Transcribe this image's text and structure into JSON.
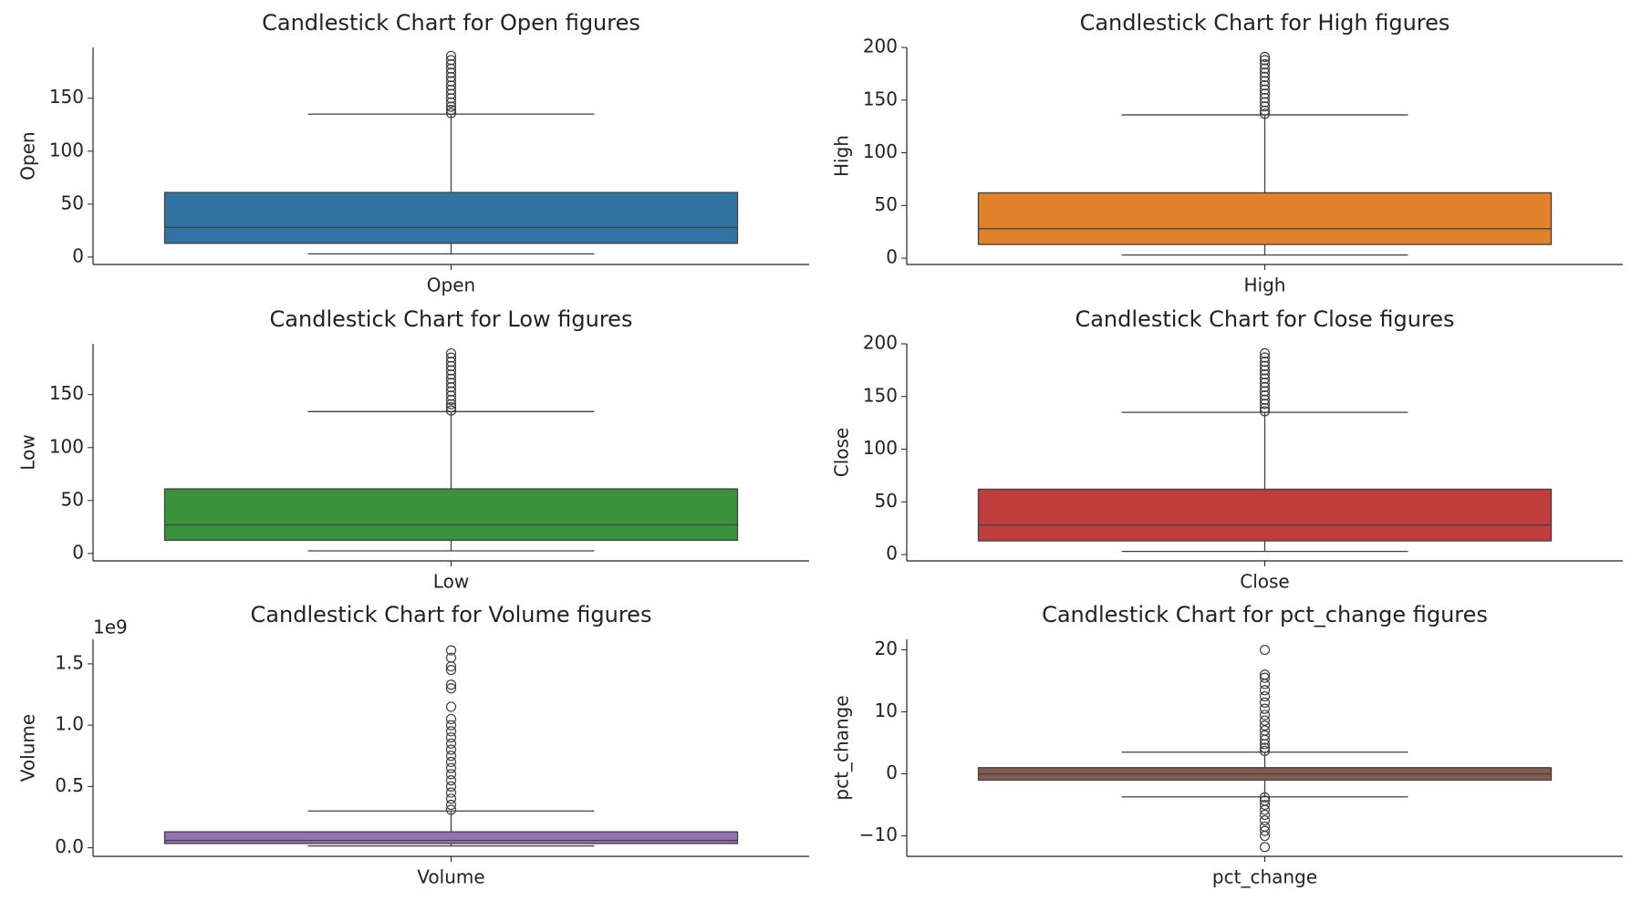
{
  "chart_data": [
    {
      "type": "box",
      "title": "Candlestick Chart for Open figures",
      "categories": [
        "Open"
      ],
      "ylabel": "Open",
      "color": "#3274a1",
      "ylim": [
        -7,
        198
      ],
      "yticks": [
        0,
        50,
        100,
        150
      ],
      "stats": {
        "whislo": 3,
        "q1": 13,
        "med": 28,
        "q3": 61,
        "whishi": 135
      },
      "outliers": [
        136,
        139,
        142,
        146,
        150,
        154,
        158,
        162,
        166,
        170,
        174,
        178,
        182,
        186,
        190
      ]
    },
    {
      "type": "box",
      "title": "Candlestick Chart for High figures",
      "categories": [
        "High"
      ],
      "ylabel": "High",
      "color": "#e1812c",
      "ylim": [
        -6,
        200
      ],
      "yticks": [
        0,
        50,
        100,
        150,
        200
      ],
      "stats": {
        "whislo": 3,
        "q1": 13,
        "med": 28,
        "q3": 62,
        "whishi": 136
      },
      "outliers": [
        137,
        140,
        144,
        148,
        152,
        156,
        160,
        164,
        168,
        172,
        176,
        180,
        184,
        188,
        191
      ]
    },
    {
      "type": "box",
      "title": "Candlestick Chart for Low figures",
      "categories": [
        "Low"
      ],
      "ylabel": "Low",
      "color": "#3a923a",
      "ylim": [
        -7,
        198
      ],
      "yticks": [
        0,
        50,
        100,
        150
      ],
      "stats": {
        "whislo": 2.5,
        "q1": 12.5,
        "med": 27,
        "q3": 61,
        "whishi": 134
      },
      "outliers": [
        135,
        138,
        141,
        145,
        149,
        153,
        157,
        161,
        165,
        169,
        173,
        177,
        181,
        185,
        189
      ]
    },
    {
      "type": "box",
      "title": "Candlestick Chart for Close figures",
      "categories": [
        "Close"
      ],
      "ylabel": "Close",
      "color": "#c03d3e",
      "ylim": [
        -6,
        200
      ],
      "yticks": [
        0,
        50,
        100,
        150,
        200
      ],
      "stats": {
        "whislo": 3,
        "q1": 13,
        "med": 28,
        "q3": 62,
        "whishi": 135
      },
      "outliers": [
        136,
        139,
        143,
        147,
        151,
        155,
        159,
        163,
        167,
        171,
        175,
        179,
        183,
        187,
        191
      ]
    },
    {
      "type": "box",
      "title": "Candlestick Chart for Volume figures",
      "categories": [
        "Volume"
      ],
      "ylabel": "Volume",
      "color": "#9372b2",
      "ylim": [
        -70000000,
        1700000000
      ],
      "axis_offset_label": "1e9",
      "yticks": [
        {
          "value": 0,
          "label": "0.0"
        },
        {
          "value": 500000000,
          "label": "0.5"
        },
        {
          "value": 1000000000,
          "label": "1.0"
        },
        {
          "value": 1500000000,
          "label": "1.5"
        }
      ],
      "stats": {
        "whislo": 15000000,
        "q1": 35000000,
        "med": 60000000,
        "q3": 130000000,
        "whishi": 300000000
      },
      "outliers": [
        310000000,
        350000000,
        400000000,
        450000000,
        500000000,
        550000000,
        600000000,
        650000000,
        700000000,
        750000000,
        800000000,
        850000000,
        900000000,
        950000000,
        1000000000,
        1050000000,
        1150000000,
        1300000000,
        1330000000,
        1450000000,
        1480000000,
        1550000000,
        1610000000
      ]
    },
    {
      "type": "box",
      "title": "Candlestick Chart for pct_change figures",
      "categories": [
        "pct_change"
      ],
      "ylabel": "pct_change",
      "color": "#845b53",
      "ylim": [
        -13.3,
        21.7
      ],
      "yticks": [
        {
          "value": -10,
          "label": "−10"
        },
        0,
        10,
        20
      ],
      "stats": {
        "whislo": -3.7,
        "q1": -1.0,
        "med": 0.0,
        "q3": 1.0,
        "whishi": 3.5
      },
      "outliers": [
        3.7,
        4.2,
        4.8,
        5.5,
        6.2,
        7.0,
        7.8,
        8.6,
        9.5,
        10.5,
        11.5,
        12.5,
        13.5,
        14.5,
        15.5,
        16.0,
        20.0,
        -3.8,
        -4.3,
        -5.0,
        -5.8,
        -6.6,
        -7.5,
        -8.5,
        -9.2,
        -10.0,
        -11.8
      ]
    }
  ]
}
